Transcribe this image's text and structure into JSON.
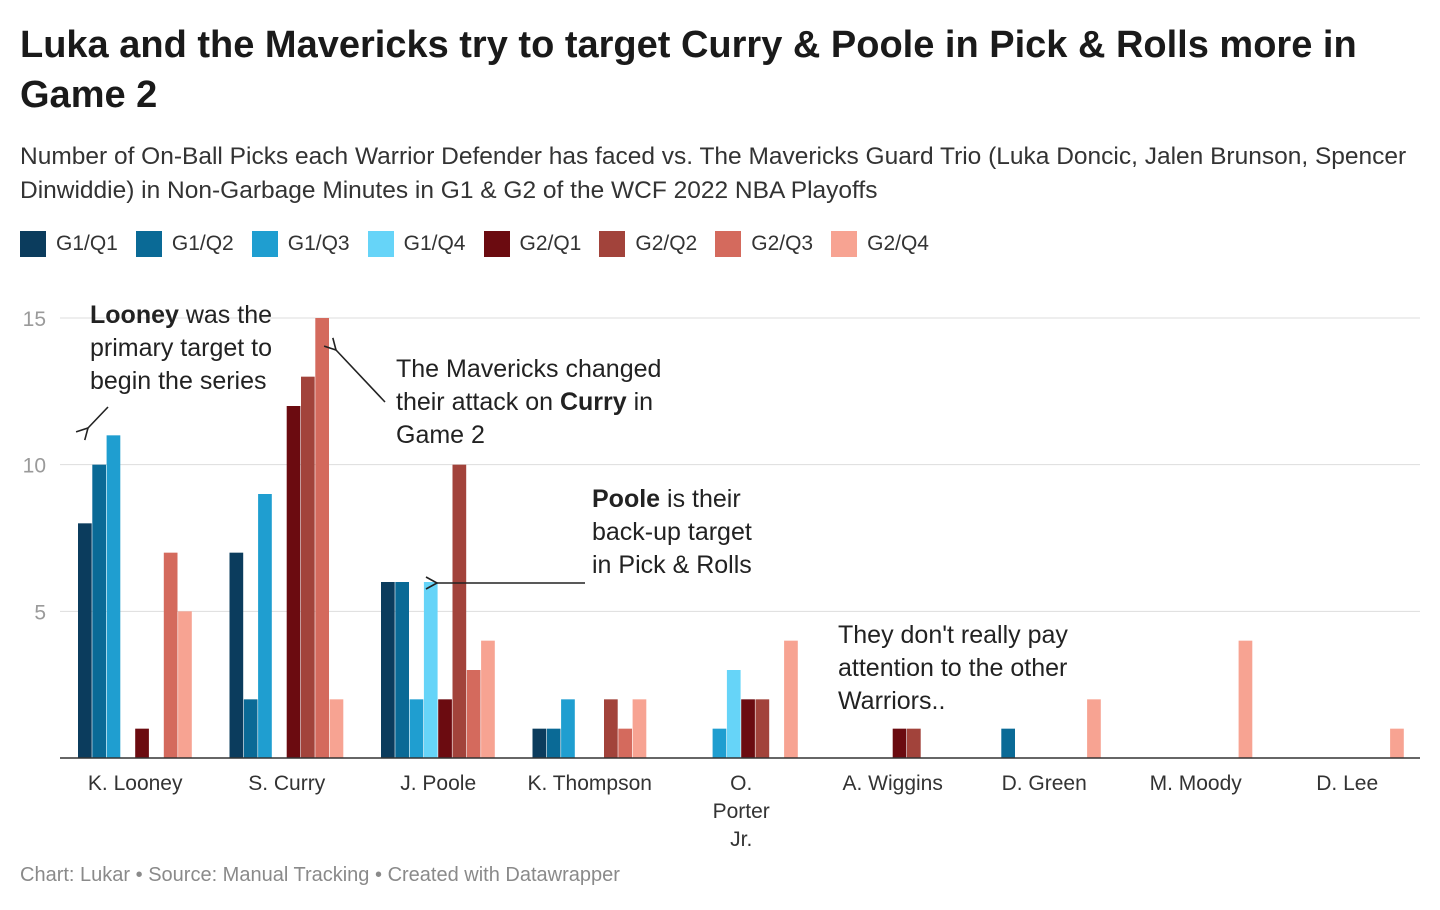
{
  "title": "Luka and the Mavericks try to target Curry & Poole in Pick & Rolls more in Game 2",
  "subtitle": "Number of On-Ball Picks each Warrior Defender has faced vs. The Mavericks Guard Trio (Luka Doncic, Jalen Brunson, Spencer Dinwiddie) in Non-Garbage Minutes in G1 & G2 of the WCF 2022 NBA Playoffs",
  "footer": {
    "chart_label": "Chart: Lukar",
    "source_label": "Source: Manual Tracking",
    "created_label": "Created with Datawrapper",
    "separator": "•"
  },
  "colors": {
    "G1/Q1": "#0b3c5d",
    "G1/Q2": "#0a6a96",
    "G1/Q3": "#1f9ed0",
    "G1/Q4": "#66d4f8",
    "G2/Q1": "#6b0b10",
    "G2/Q2": "#a2433b",
    "G2/Q3": "#d46a5d",
    "G2/Q4": "#f7a392",
    "grid": "#dddddd",
    "axis": "#333333"
  },
  "chart_data": {
    "type": "bar",
    "ylim": [
      0,
      15
    ],
    "yticks": [
      5,
      10,
      15
    ],
    "grid": true,
    "legend_position": "top-left",
    "categories": [
      "K. Looney",
      "S. Curry",
      "J. Poole",
      "K. Thompson",
      "O. Porter Jr.",
      "A. Wiggins",
      "D. Green",
      "M. Moody",
      "D. Lee"
    ],
    "series": [
      {
        "name": "G1/Q1",
        "values": [
          8,
          7,
          6,
          1,
          0,
          0,
          0,
          0,
          0
        ]
      },
      {
        "name": "G1/Q2",
        "values": [
          10,
          2,
          6,
          1,
          0,
          0,
          1,
          0,
          0
        ]
      },
      {
        "name": "G1/Q3",
        "values": [
          11,
          9,
          2,
          2,
          1,
          0,
          0,
          0,
          0
        ]
      },
      {
        "name": "G1/Q4",
        "values": [
          0,
          0,
          6,
          0,
          3,
          0,
          0,
          0,
          0
        ]
      },
      {
        "name": "G2/Q1",
        "values": [
          1,
          12,
          2,
          0,
          2,
          1,
          0,
          0,
          0
        ]
      },
      {
        "name": "G2/Q2",
        "values": [
          0,
          13,
          10,
          2,
          2,
          1,
          0,
          0,
          0
        ]
      },
      {
        "name": "G2/Q3",
        "values": [
          7,
          15,
          3,
          1,
          0,
          0,
          0,
          0,
          0
        ]
      },
      {
        "name": "G2/Q4",
        "values": [
          5,
          2,
          4,
          2,
          4,
          0,
          2,
          4,
          1
        ]
      }
    ],
    "annotations": [
      {
        "lines": [
          [
            [
              "Looney",
              true
            ],
            [
              " was the",
              false
            ]
          ],
          [
            [
              "primary target to",
              false
            ]
          ],
          [
            [
              "begin the series",
              false
            ]
          ]
        ]
      },
      {
        "lines": [
          [
            [
              "The Mavericks changed",
              false
            ]
          ],
          [
            [
              "their attack on ",
              false
            ],
            [
              "Curry",
              true
            ],
            [
              " in",
              false
            ]
          ],
          [
            [
              "Game 2",
              false
            ]
          ]
        ]
      },
      {
        "lines": [
          [
            [
              "Poole",
              true
            ],
            [
              " is their",
              false
            ]
          ],
          [
            [
              "back-up target",
              false
            ]
          ],
          [
            [
              "in Pick & Rolls",
              false
            ]
          ]
        ]
      },
      {
        "lines": [
          [
            [
              "They don't really pay",
              false
            ]
          ],
          [
            [
              "attention to the other",
              false
            ]
          ],
          [
            [
              "Warriors..",
              false
            ]
          ]
        ]
      }
    ]
  }
}
